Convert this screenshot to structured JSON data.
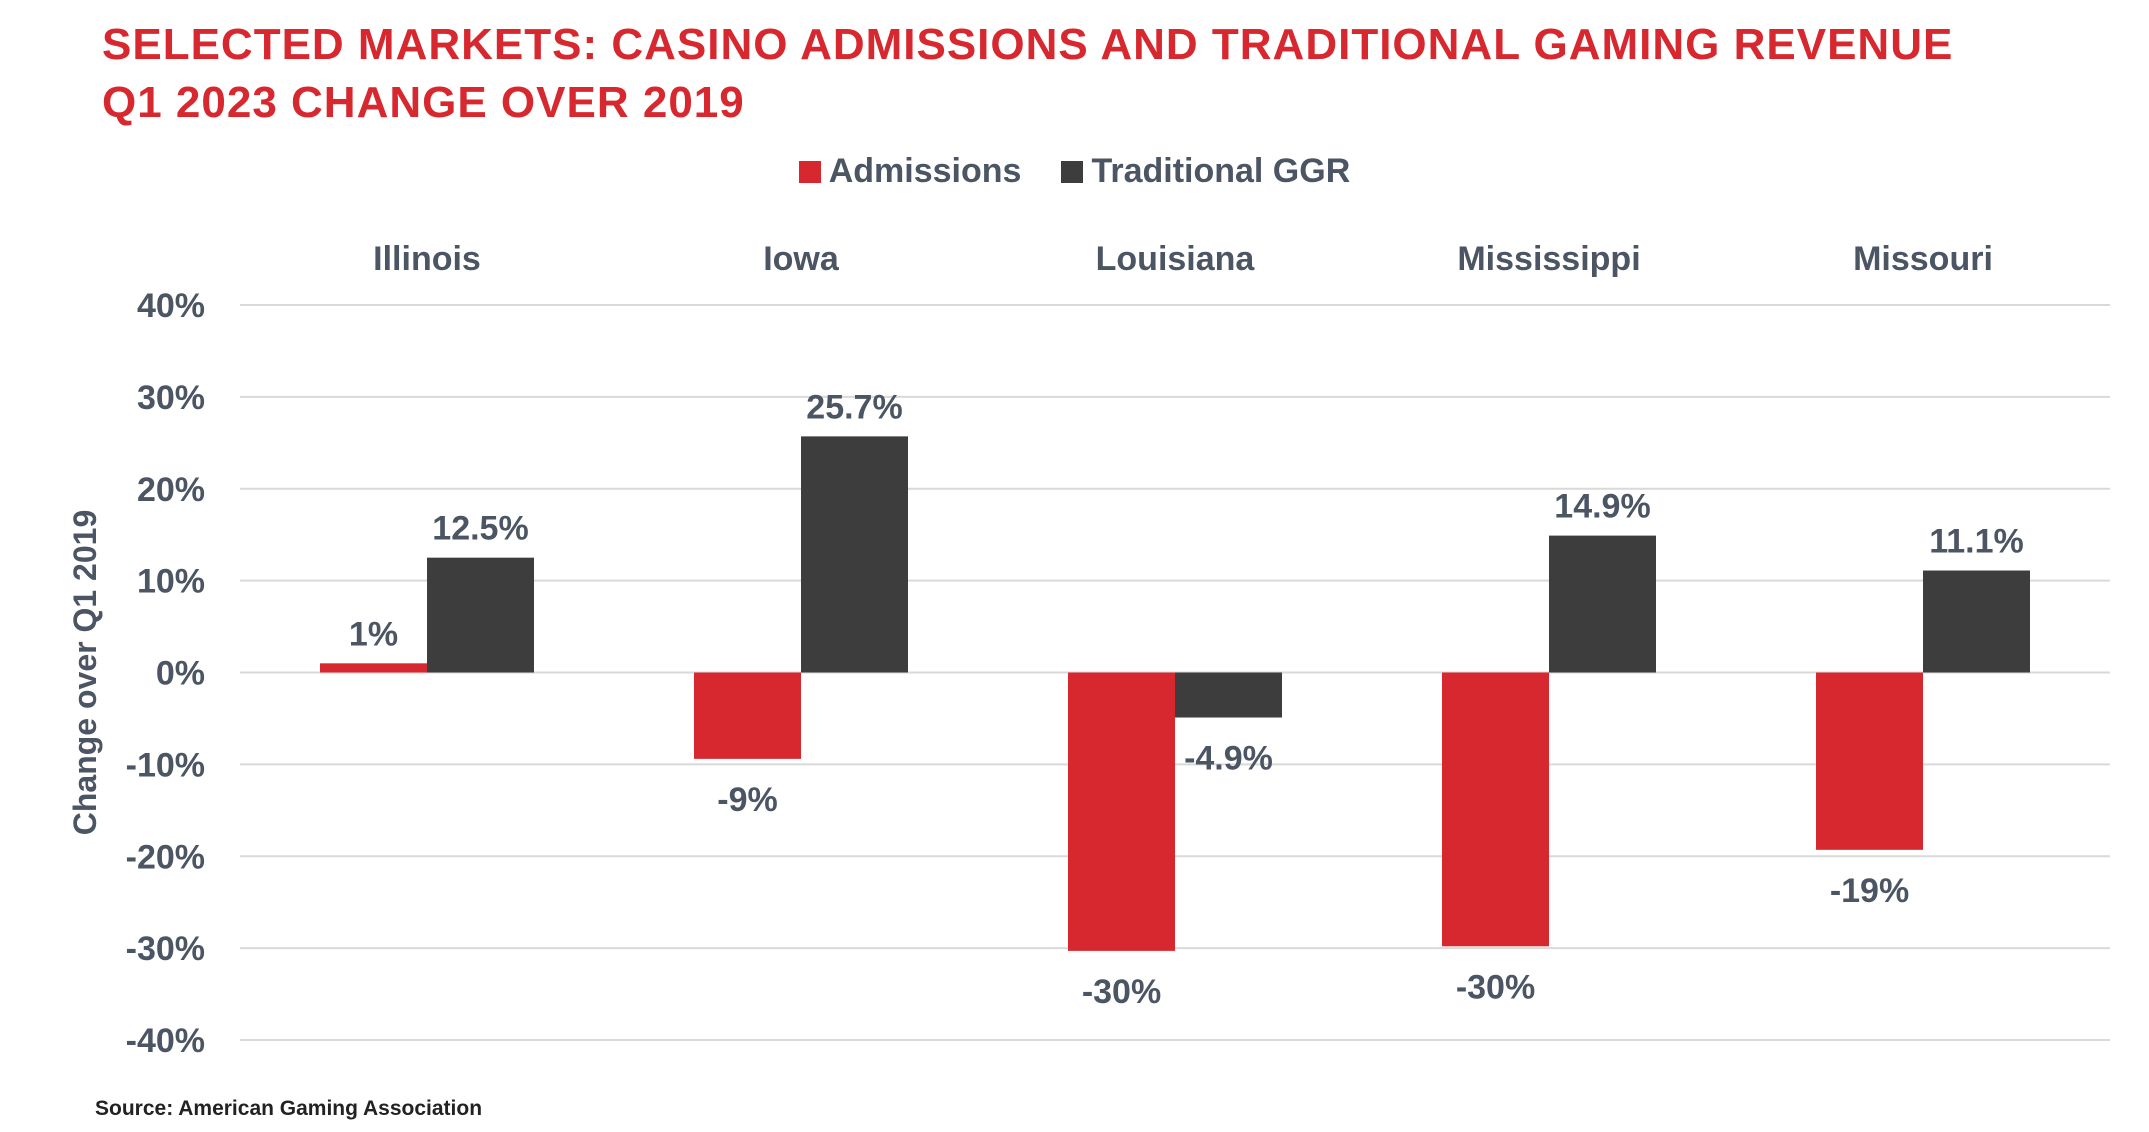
{
  "chart_data": {
    "type": "bar",
    "title": "SELECTED MARKETS: CASINO ADMISSIONS AND TRADITIONAL GAMING REVENUE",
    "subtitle": "Q1 2023 CHANGE OVER 2019",
    "categories": [
      "Illinois",
      "Iowa",
      "Louisiana",
      "Mississippi",
      "Missouri"
    ],
    "series": [
      {
        "name": "Admissions",
        "color": "#d7282f",
        "values": [
          1,
          -9.4,
          -30.3,
          -29.8,
          -19.3
        ],
        "labels": [
          "1%",
          "-9%",
          "-30%",
          "-30%",
          "-19%"
        ]
      },
      {
        "name": "Traditional GGR",
        "color": "#3d3d3d",
        "values": [
          12.5,
          25.7,
          -4.9,
          14.9,
          11.1
        ],
        "labels": [
          "12.5%",
          "25.7%",
          "-4.9%",
          "14.9%",
          "11.1%"
        ]
      }
    ],
    "ylabel": "Change over Q1 2019",
    "xlabel": "",
    "ylim": [
      -40,
      40
    ],
    "yticks": [
      40,
      30,
      20,
      10,
      0,
      -10,
      -20,
      -30,
      -40
    ],
    "ytick_labels": [
      "40%",
      "30%",
      "20%",
      "10%",
      "0%",
      "-10%",
      "-20%",
      "-30%",
      "-40%"
    ],
    "grid": true,
    "legend_position": "top-center",
    "category_labels_position": "top"
  },
  "source": "Source: American Gaming Association"
}
